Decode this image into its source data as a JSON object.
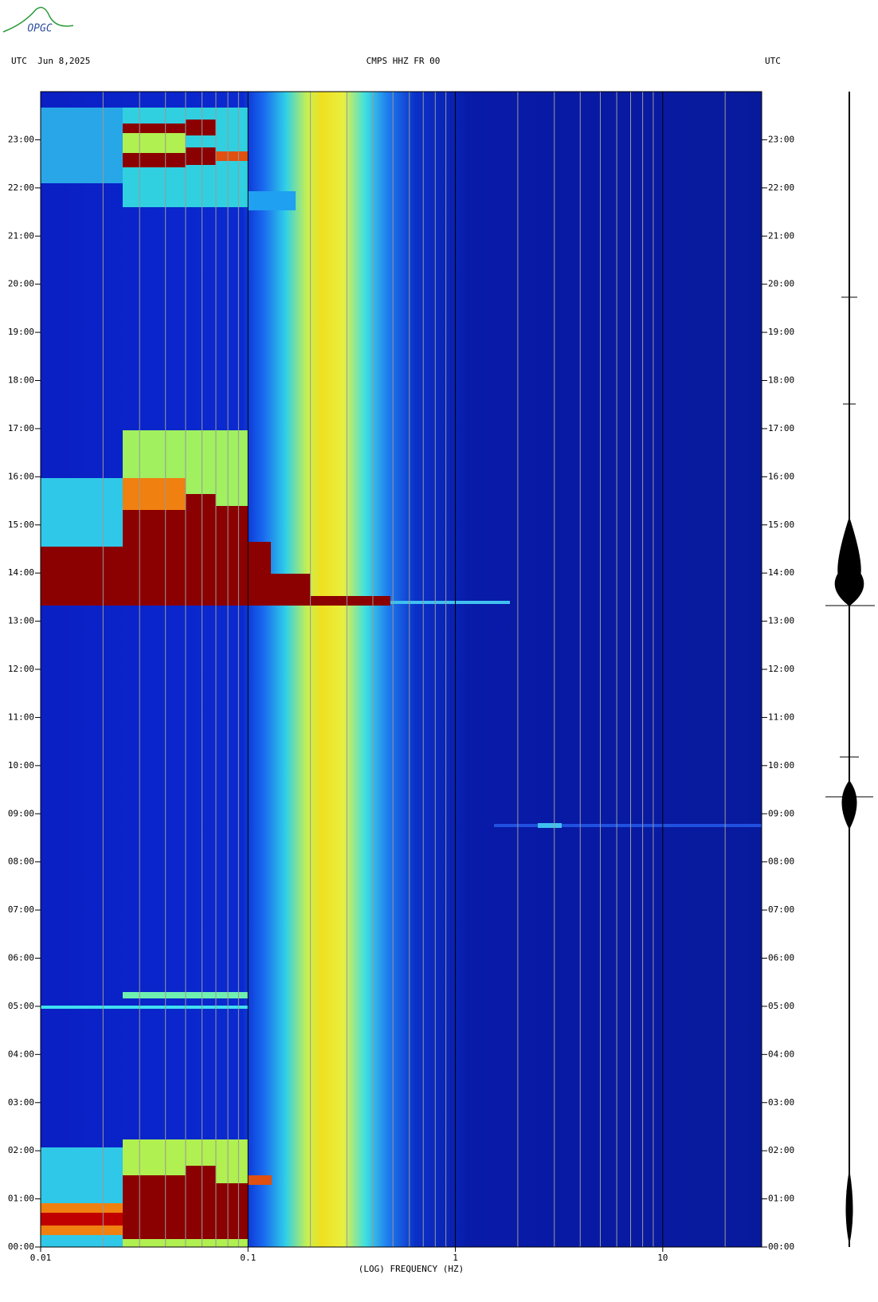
{
  "logo": "OPGC",
  "chart_data": {
    "type": "spectrogram",
    "title": "CMPS HHZ FR 00",
    "left_header": "UTC  Jun 8,2025",
    "right_header": "UTC",
    "xlabel": "(LOG) FREQUENCY (HZ)",
    "xscale": "log",
    "xlim": [
      0.01,
      30
    ],
    "xticks": [
      {
        "value": 0.01,
        "label": "0.01"
      },
      0.1,
      1,
      10
    ],
    "xminorticks": [
      0.02,
      0.03,
      0.04,
      0.05,
      0.06,
      0.07,
      0.08,
      0.09,
      0.2,
      0.3,
      0.4,
      0.5,
      0.6,
      0.7,
      0.8,
      0.9,
      2,
      3,
      4,
      5,
      6,
      7,
      8,
      9,
      20
    ],
    "ylim": [
      0,
      24
    ],
    "yticks": [
      {
        "value": 0,
        "label": "00:00"
      },
      {
        "value": 1,
        "label": "01:00"
      },
      {
        "value": 2,
        "label": "02:00"
      },
      {
        "value": 3,
        "label": "03:00"
      },
      {
        "value": 4,
        "label": "04:00"
      },
      {
        "value": 5,
        "label": "05:00"
      },
      {
        "value": 6,
        "label": "06:00"
      },
      {
        "value": 7,
        "label": "07:00"
      },
      {
        "value": 8,
        "label": "08:00"
      },
      {
        "value": 9,
        "label": "09:00"
      },
      {
        "value": 10,
        "label": "10:00"
      },
      {
        "value": 11,
        "label": "11:00"
      },
      {
        "value": 12,
        "label": "12:00"
      },
      {
        "value": 13,
        "label": "13:00"
      },
      {
        "value": 14,
        "label": "14:00"
      },
      {
        "value": 15,
        "label": "15:00"
      },
      {
        "value": 16,
        "label": "16:00"
      },
      {
        "value": 17,
        "label": "17:00"
      },
      {
        "value": 18,
        "label": "18:00"
      },
      {
        "value": 19,
        "label": "19:00"
      },
      {
        "value": 20,
        "label": "20:00"
      },
      {
        "value": 21,
        "label": "21:00"
      },
      {
        "value": 22,
        "label": "22:00"
      },
      {
        "value": 23,
        "label": "23:00"
      }
    ]
  }
}
